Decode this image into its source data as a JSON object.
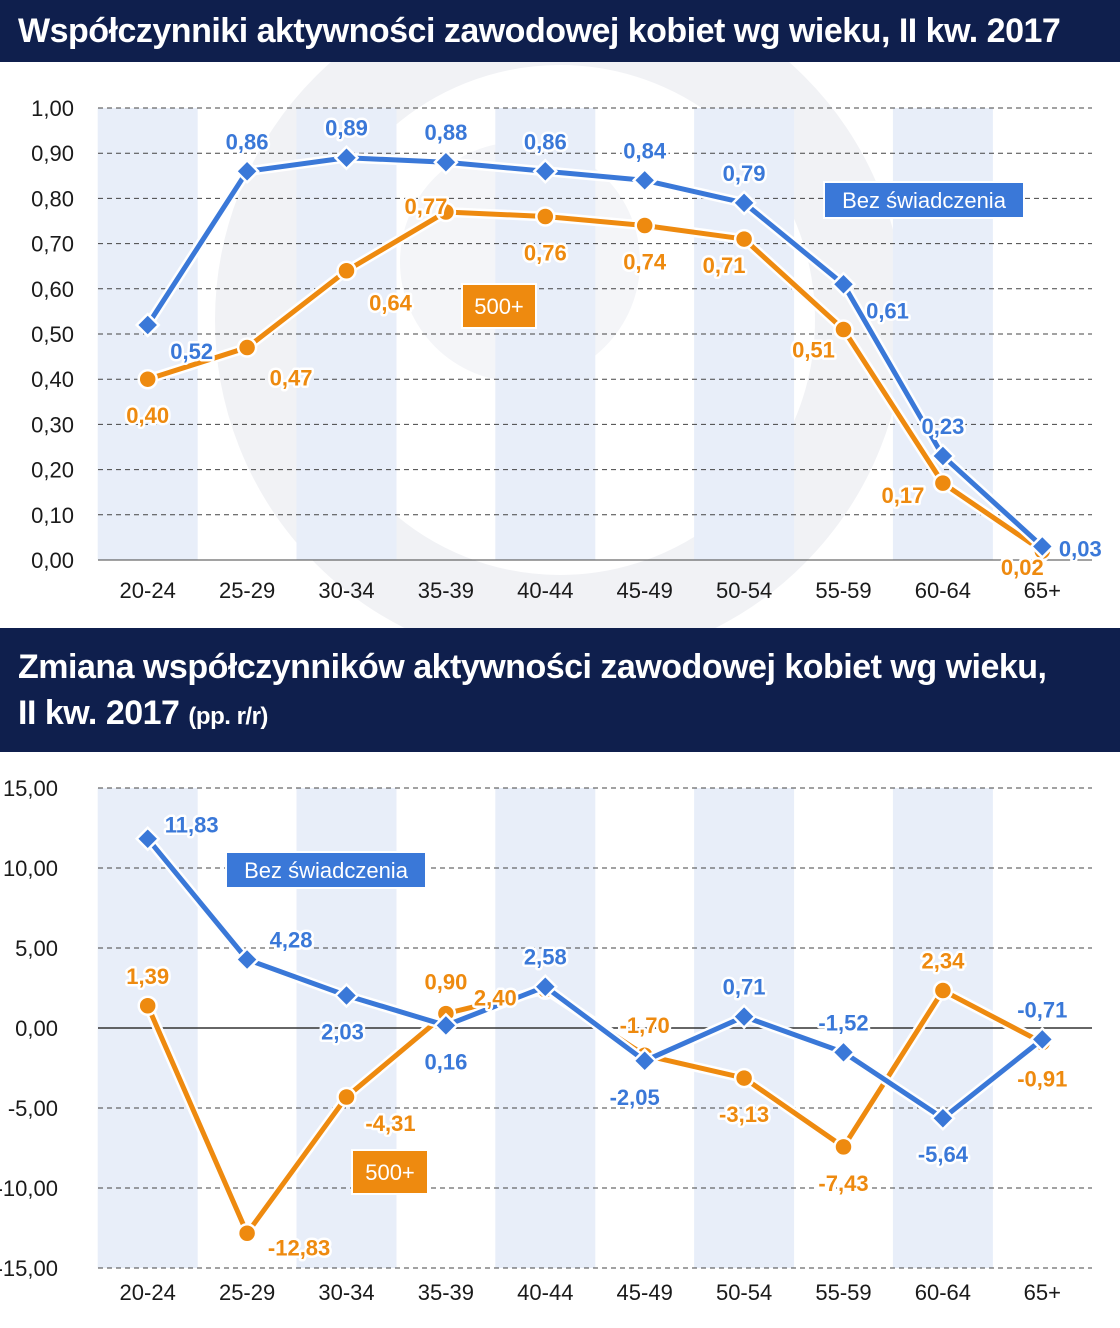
{
  "chart_data": [
    {
      "type": "line",
      "title": "Współczynniki aktywności zawodowej kobiet wg wieku, II kw. 2017",
      "categories": [
        "20-24",
        "25-29",
        "30-34",
        "35-39",
        "40-44",
        "45-49",
        "50-54",
        "55-59",
        "60-64",
        "65+"
      ],
      "series": [
        {
          "name": "Bez świadczenia",
          "color": "#3a78d8",
          "values": [
            0.52,
            0.86,
            0.89,
            0.88,
            0.86,
            0.84,
            0.79,
            0.61,
            0.23,
            0.03
          ],
          "labels": [
            "0,52",
            "0,86",
            "0,89",
            "0,88",
            "0,86",
            "0,84",
            "0,79",
            "0,61",
            "0,23",
            "0,03"
          ]
        },
        {
          "name": "500+",
          "color": "#ee8a0f",
          "values": [
            0.4,
            0.47,
            0.64,
            0.77,
            0.76,
            0.74,
            0.71,
            0.51,
            0.17,
            0.02
          ],
          "labels": [
            "0,40",
            "0,47",
            "0,64",
            "0,77",
            "0,76",
            "0,74",
            "0,71",
            "0,51",
            "0,17",
            "0,02"
          ]
        }
      ],
      "ylim": [
        0,
        1
      ],
      "yticks": [
        "0,00",
        "0,10",
        "0,20",
        "0,30",
        "0,40",
        "0,50",
        "0,60",
        "0,70",
        "0,80",
        "0,90",
        "1,00"
      ],
      "grid": true
    },
    {
      "type": "line",
      "title": "Zmiana współczynników aktywności zawodowej kobiet wg wieku,",
      "title_line2": "II kw. 2017",
      "subtitle": "(pp. r/r)",
      "categories": [
        "20-24",
        "25-29",
        "30-34",
        "35-39",
        "40-44",
        "45-49",
        "50-54",
        "55-59",
        "60-64",
        "65+"
      ],
      "series": [
        {
          "name": "Bez świadczenia",
          "color": "#3a78d8",
          "values": [
            11.83,
            4.28,
            2.03,
            0.16,
            2.58,
            -2.05,
            0.71,
            -1.52,
            -5.64,
            -0.71
          ],
          "labels": [
            "11,83",
            "4,28",
            "2,03",
            "0,16",
            "2,58",
            "-2,05",
            "0,71",
            "-1,52",
            "-5,64",
            "-0,71"
          ]
        },
        {
          "name": "500+",
          "color": "#ee8a0f",
          "values": [
            1.39,
            -12.83,
            -4.31,
            0.9,
            2.4,
            -1.7,
            -3.13,
            -7.43,
            2.34,
            -0.91
          ],
          "labels": [
            "1,39",
            "-12,83",
            "-4,31",
            "0,90",
            "2,40",
            "-1,70",
            "-3,13",
            "-7,43",
            "2,34",
            "-0,91"
          ]
        }
      ],
      "ylim": [
        -15,
        15
      ],
      "yticks": [
        "-15,00",
        "-10,00",
        "-5,00",
        "0,00",
        "5,00",
        "10,00",
        "15,00"
      ],
      "grid": true
    }
  ]
}
